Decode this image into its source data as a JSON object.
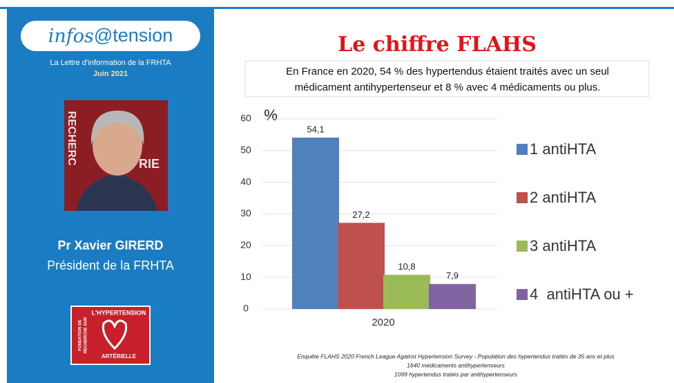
{
  "newsletter": {
    "logo": [
      "infos",
      "@tension"
    ],
    "tagline": "La Lettre d’information de la FRHTA",
    "date": "Juin 2021",
    "photo_text": [
      "RECHERC",
      "RIE"
    ],
    "author": "Pr Xavier GIRERD",
    "role": "Président de la FRHTA",
    "foundation": [
      "FONDATION DE",
      "RECHERCHE SUR",
      "L'HYPERTENSION",
      "ARTÉRIELLE"
    ]
  },
  "chart_data": {
    "type": "bar",
    "title": "Le chiffre FLAHS",
    "subtitle": [
      "En France en 2020, 54 % des hypertendus étaient traités avec un seul",
      "médicament antihypertenseur et 8 % avec 4 médicaments ou plus."
    ],
    "y_label": "%",
    "categories": [
      "2020"
    ],
    "series": [
      {
        "name": "1 antiHTA",
        "color": "#4f81bd",
        "values": [
          54.1
        ],
        "value_labels": [
          "54,1"
        ]
      },
      {
        "name": "2 antiHTA",
        "color": "#c0504d",
        "values": [
          27.2
        ],
        "value_labels": [
          "27,2"
        ]
      },
      {
        "name": "3 antiHTA",
        "color": "#9bbb59",
        "values": [
          10.8
        ],
        "value_labels": [
          "10,8"
        ]
      },
      {
        "name": "4  antiHTA ou +",
        "color": "#8064a2",
        "values": [
          7.9
        ],
        "value_labels": [
          "7,9"
        ]
      }
    ],
    "ylim": [
      0,
      60
    ],
    "yticks": [
      0,
      10,
      20,
      30,
      40,
      50,
      60
    ],
    "grid": true,
    "legend": "right",
    "footnote": [
      "Enquête FLAHS 2020 French League Against Hypertension Survey - Population des hypertendus traités de 35 ans et plus",
      "1640 médicaments antihypertenseurs",
      "1099 hypertendus traités par antihypertenseurs"
    ]
  }
}
